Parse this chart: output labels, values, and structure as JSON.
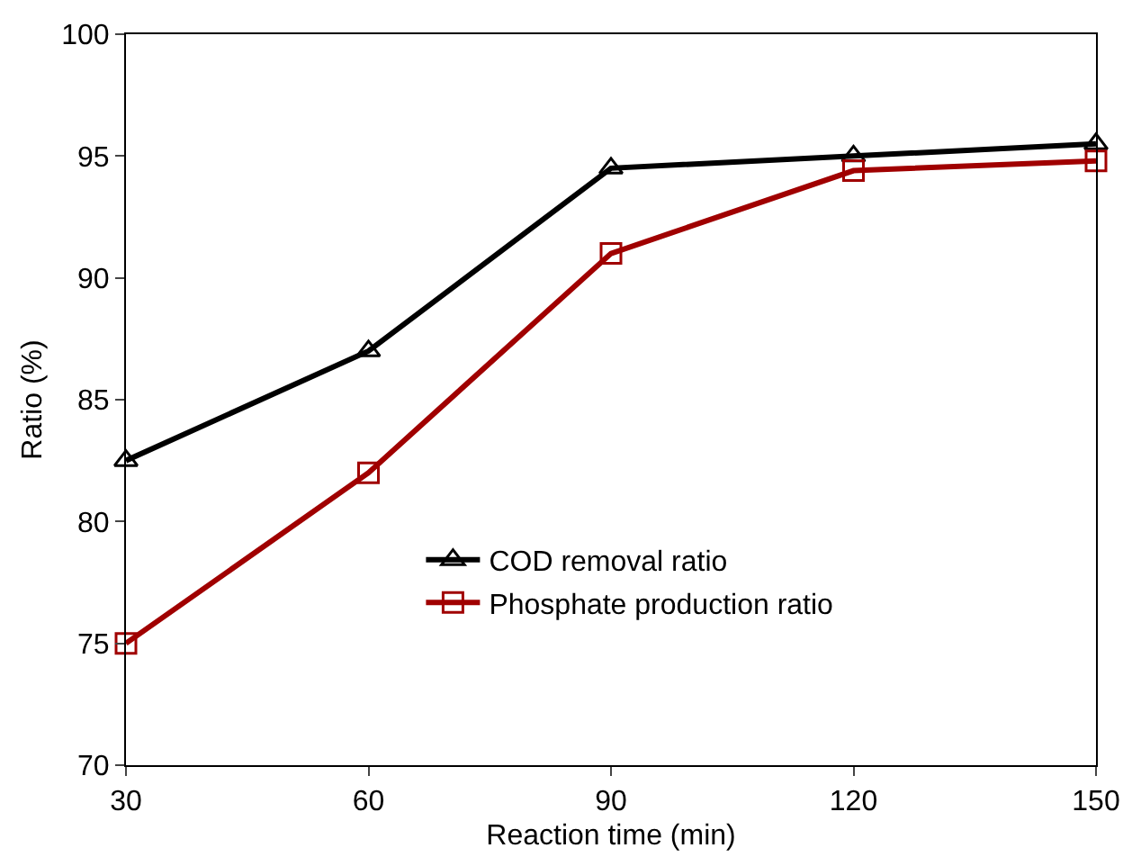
{
  "chart_data": {
    "type": "line",
    "xlabel": "Reaction time (min)",
    "ylabel": "Ratio (%)",
    "x": [
      30,
      60,
      90,
      120,
      150
    ],
    "series": [
      {
        "name": "COD removal ratio",
        "color": "#000000",
        "marker": "triangle",
        "values": [
          82.5,
          87,
          94.5,
          95,
          95.5
        ]
      },
      {
        "name": "Phosphate production ratio",
        "color": "#a00000",
        "marker": "square",
        "values": [
          75,
          82,
          91,
          94.4,
          94.8
        ]
      }
    ],
    "xlim": [
      30,
      150
    ],
    "xticks": [
      30,
      60,
      90,
      120,
      150
    ],
    "ylim": [
      70,
      100
    ],
    "yticks": [
      70,
      75,
      80,
      85,
      90,
      95,
      100
    ],
    "legend": "bottom",
    "line_style": "solid"
  }
}
